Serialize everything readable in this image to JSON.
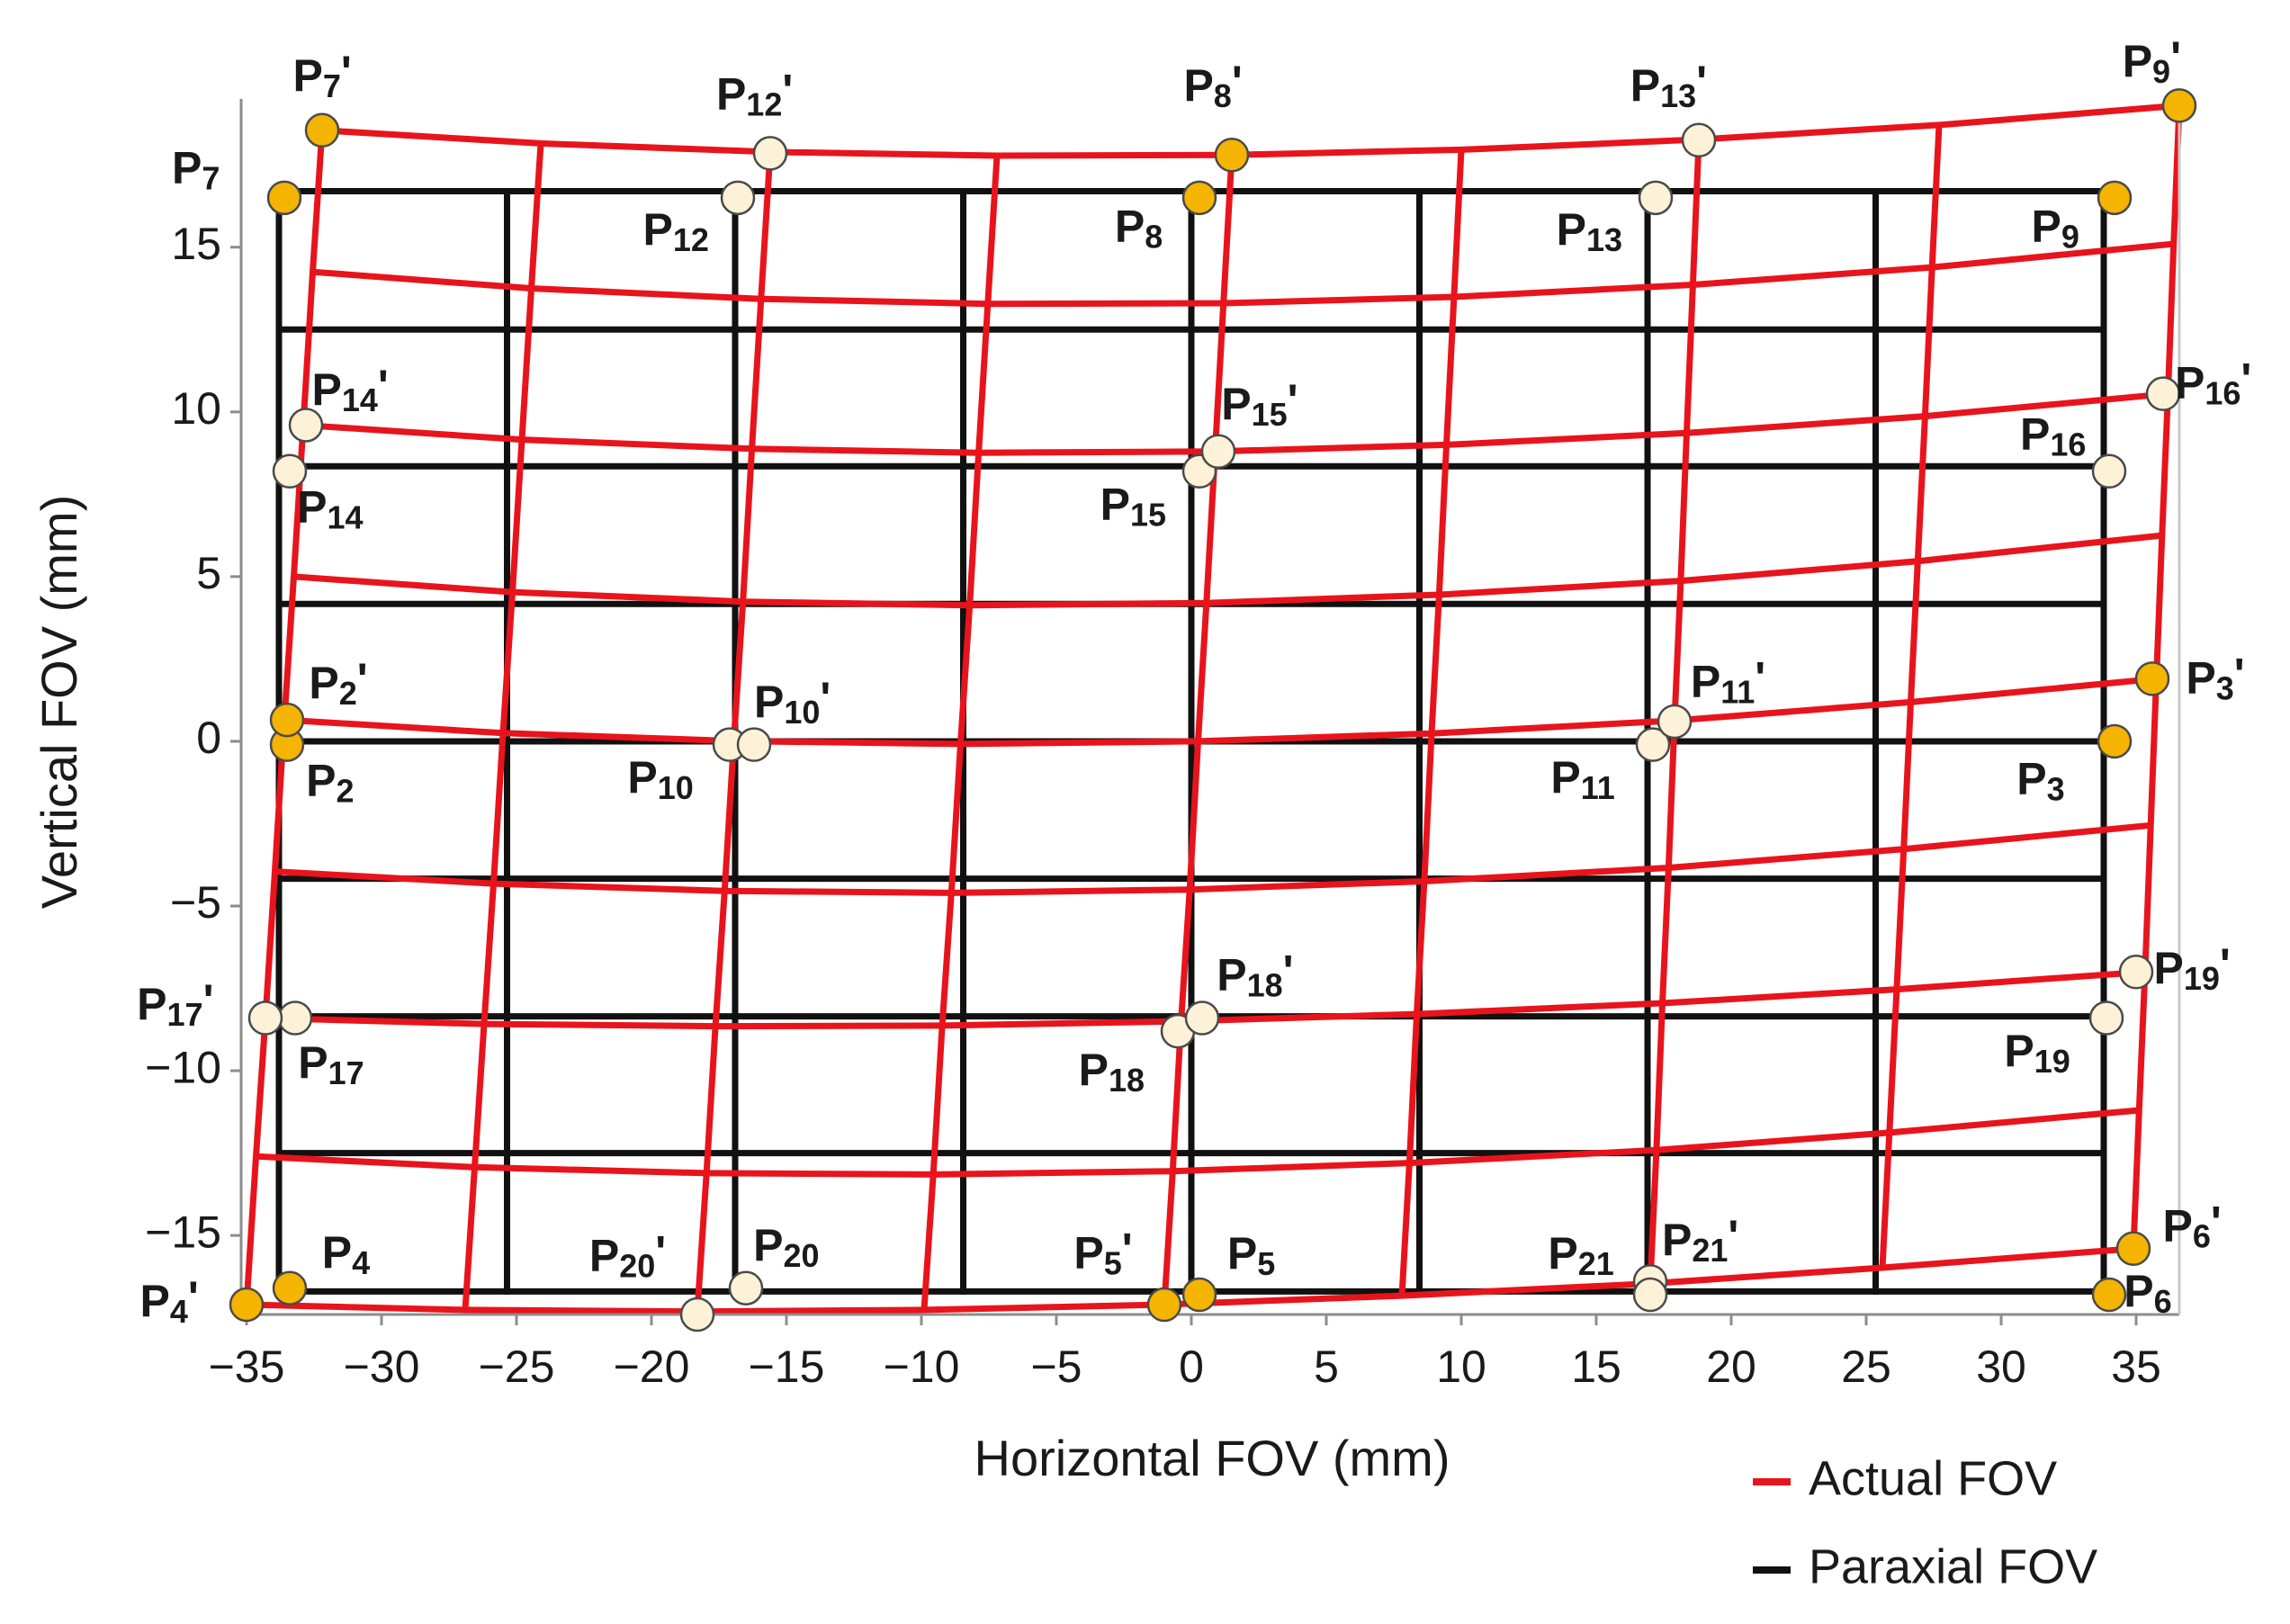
{
  "chart_data": {
    "type": "distortion-grid",
    "xlabel": "Horizontal FOV (mm)",
    "ylabel": "Vertical FOV (mm)",
    "xlim": [
      -35.2,
      36.6
    ],
    "ylim": [
      -17.4,
      19.5
    ],
    "xticks": [
      {
        "value": -35,
        "label": "−35"
      },
      {
        "value": -30,
        "label": "−30"
      },
      {
        "value": -25,
        "label": "−25"
      },
      {
        "value": -20,
        "label": "−20"
      },
      {
        "value": -15,
        "label": "−15"
      },
      {
        "value": -10,
        "label": "−10"
      },
      {
        "value": -5,
        "label": "−5"
      },
      0,
      5,
      10,
      15,
      20,
      25,
      30,
      35
    ],
    "yticks": [
      {
        "value": -15,
        "label": "−15"
      },
      {
        "value": -10,
        "label": "−10"
      },
      {
        "value": -5,
        "label": "−5"
      },
      0,
      5,
      10,
      15
    ],
    "series": [
      {
        "name": "Actual FOV",
        "color": "#e8141c",
        "x": [
          [
            -32.2,
            -24.1,
            -15.6,
            -7.2,
            1.5,
            10,
            18.8,
            27.7,
            36.6
          ],
          [
            -32.55,
            -24.45,
            -15.94,
            -7.54,
            1.19,
            9.73,
            18.58,
            27.44,
            36.39
          ],
          [
            -32.9,
            -24.8,
            -16.28,
            -7.88,
            0.88,
            9.45,
            18.35,
            27.18,
            36.18
          ],
          [
            -33.25,
            -25.15,
            -16.61,
            -8.21,
            0.56,
            9.18,
            18.13,
            26.91,
            35.96
          ],
          [
            -33.6,
            -25.5,
            -16.95,
            -8.55,
            0.25,
            8.9,
            17.9,
            26.65,
            35.75
          ],
          [
            -33.95,
            -25.85,
            -17.29,
            -8.89,
            -0.06,
            8.63,
            17.68,
            26.39,
            35.54
          ],
          [
            -34.3,
            -26.2,
            -17.63,
            -9.23,
            -0.38,
            8.35,
            17.45,
            26.13,
            35.33
          ],
          [
            -34.65,
            -26.55,
            -17.96,
            -9.56,
            -0.69,
            8.08,
            17.23,
            25.86,
            35.11
          ],
          [
            -35,
            -26.9,
            -18.3,
            -9.9,
            -1,
            7.8,
            17,
            25.6,
            34.9
          ]
        ],
        "y": [
          [
            18.55,
            18.15,
            17.89,
            17.78,
            17.8,
            17.96,
            18.27,
            18.71,
            19.3
          ],
          [
            14.25,
            13.75,
            13.43,
            13.28,
            13.3,
            13.49,
            13.86,
            14.39,
            15.1
          ],
          [
            9.6,
            9.16,
            8.88,
            8.76,
            8.8,
            9.0,
            9.36,
            9.87,
            10.55
          ],
          [
            5.0,
            4.53,
            4.24,
            4.13,
            4.2,
            4.45,
            4.87,
            5.47,
            6.25
          ],
          [
            0.65,
            0.25,
            0.01,
            -0.08,
            0,
            0.24,
            0.63,
            1.19,
            1.9
          ],
          [
            -3.95,
            -4.32,
            -4.54,
            -4.6,
            -4.5,
            -4.25,
            -3.84,
            -3.27,
            -2.55
          ],
          [
            -8.4,
            -8.58,
            -8.65,
            -8.63,
            -8.5,
            -8.28,
            -7.95,
            -7.53,
            -7.0
          ],
          [
            -12.6,
            -12.93,
            -13.11,
            -13.15,
            -13.05,
            -12.8,
            -12.41,
            -11.88,
            -11.2
          ],
          [
            -17.1,
            -17.26,
            -17.31,
            -17.26,
            -17.1,
            -16.83,
            -16.46,
            -15.98,
            -15.4
          ]
        ]
      },
      {
        "name": "Paraxial FOV",
        "color": "#111111",
        "x": [
          -33.8,
          -25.35,
          -16.9,
          -8.45,
          0,
          8.45,
          16.9,
          25.35,
          33.8
        ],
        "y": [
          16.7,
          12.5,
          8.35,
          4.17,
          0,
          -4.17,
          -8.35,
          -12.5,
          -16.7
        ]
      }
    ],
    "points": [
      {
        "label": "P7",
        "x": -33.6,
        "y": 16.5,
        "color": "#f5b400"
      },
      {
        "label": "P12",
        "x": -16.8,
        "y": 16.5,
        "color": "#fdf1d8"
      },
      {
        "label": "P8",
        "x": 0.3,
        "y": 16.5,
        "color": "#f5b400"
      },
      {
        "label": "P13",
        "x": 17.2,
        "y": 16.5,
        "color": "#fdf1d8"
      },
      {
        "label": "P9",
        "x": 34.2,
        "y": 16.5,
        "color": "#f5b400"
      },
      {
        "label": "P14",
        "x": -33.4,
        "y": 8.2,
        "color": "#fdf1d8"
      },
      {
        "label": "P15",
        "x": 0.3,
        "y": 8.2,
        "color": "#fdf1d8"
      },
      {
        "label": "P16",
        "x": 34,
        "y": 8.2,
        "color": "#fdf1d8"
      },
      {
        "label": "P2",
        "x": -33.5,
        "y": -0.1,
        "color": "#f5b400"
      },
      {
        "label": "P10",
        "x": -17.1,
        "y": -0.1,
        "color": "#fdf1d8"
      },
      {
        "label": "P11",
        "x": 17.1,
        "y": -0.1,
        "color": "#fdf1d8"
      },
      {
        "label": "P3",
        "x": 34.2,
        "y": 0,
        "color": "#f5b400"
      },
      {
        "label": "P17",
        "x": -33.2,
        "y": -8.4,
        "color": "#fdf1d8"
      },
      {
        "label": "P18",
        "x": -0.5,
        "y": -8.8,
        "color": "#fdf1d8"
      },
      {
        "label": "P19",
        "x": 33.9,
        "y": -8.4,
        "color": "#fdf1d8"
      },
      {
        "label": "P4",
        "x": -33.4,
        "y": -16.6,
        "color": "#f5b400"
      },
      {
        "label": "P20",
        "x": -16.5,
        "y": -16.6,
        "color": "#fdf1d8"
      },
      {
        "label": "P5",
        "x": 0.3,
        "y": -16.8,
        "color": "#f5b400"
      },
      {
        "label": "P21",
        "x": 17,
        "y": -16.4,
        "color": "#fdf1d8"
      },
      {
        "label": "P6",
        "x": 34,
        "y": -16.8,
        "color": "#f5b400"
      },
      {
        "label": "P7'",
        "x": -32.2,
        "y": 18.55,
        "color": "#f5b400"
      },
      {
        "label": "P12'",
        "x": -15.6,
        "y": 17.85,
        "color": "#fdf1d8"
      },
      {
        "label": "P8'",
        "x": 1.5,
        "y": 17.8,
        "color": "#f5b400"
      },
      {
        "label": "P13'",
        "x": 18.8,
        "y": 18.25,
        "color": "#fdf1d8"
      },
      {
        "label": "P9'",
        "x": 36.6,
        "y": 19.3,
        "color": "#f5b400"
      },
      {
        "label": "P14'",
        "x": -32.8,
        "y": 9.6,
        "color": "#fdf1d8"
      },
      {
        "label": "P15'",
        "x": 1.0,
        "y": 8.8,
        "color": "#fdf1d8"
      },
      {
        "label": "P16'",
        "x": 36,
        "y": 10.55,
        "color": "#fdf1d8"
      },
      {
        "label": "P2'",
        "x": -33.5,
        "y": 0.65,
        "color": "#f5b400"
      },
      {
        "label": "P10'",
        "x": -16.2,
        "y": -0.1,
        "color": "#fdf1d8"
      },
      {
        "label": "P11'",
        "x": 17.9,
        "y": 0.6,
        "color": "#fdf1d8"
      },
      {
        "label": "P3'",
        "x": 35.6,
        "y": 1.9,
        "color": "#f5b400"
      },
      {
        "label": "P17'",
        "x": -34.3,
        "y": -8.4,
        "color": "#fdf1d8"
      },
      {
        "label": "P18'",
        "x": 0.4,
        "y": -8.4,
        "color": "#fdf1d8"
      },
      {
        "label": "P19'",
        "x": 35,
        "y": -7.0,
        "color": "#fdf1d8"
      },
      {
        "label": "P4'",
        "x": -35,
        "y": -17.1,
        "color": "#f5b400"
      },
      {
        "label": "P20'",
        "x": -18.3,
        "y": -17.4,
        "color": "#fdf1d8"
      },
      {
        "label": "P5'",
        "x": -1,
        "y": -17.1,
        "color": "#f5b400"
      },
      {
        "label": "P21'",
        "x": 17,
        "y": -16.8,
        "color": "#fdf1d8"
      },
      {
        "label": "P6'",
        "x": 34.9,
        "y": -15.4,
        "color": "#f5b400"
      }
    ]
  }
}
